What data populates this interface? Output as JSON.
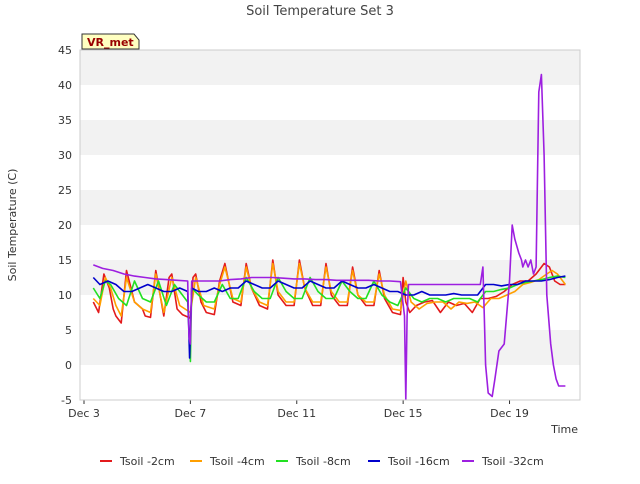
{
  "chart_data": {
    "type": "line",
    "title": "Soil Temperature Set 3",
    "xlabel": "Time",
    "ylabel": "Soil Temperature (C)",
    "badge": "VR_met",
    "ylim": [
      -5,
      45
    ],
    "yticks": [
      -5,
      0,
      5,
      10,
      15,
      20,
      25,
      30,
      35,
      40,
      45
    ],
    "xlim": [
      2.85,
      21.65
    ],
    "xticks": [
      {
        "x": 3,
        "label": "Dec 3"
      },
      {
        "x": 7,
        "label": "Dec 7"
      },
      {
        "x": 11,
        "label": "Dec 11"
      },
      {
        "x": 15,
        "label": "Dec 15"
      },
      {
        "x": 19,
        "label": "Dec 19"
      }
    ],
    "grid": "horizontal bands",
    "legend": "bottom",
    "series": [
      {
        "name": "Tsoil -2cm",
        "color": "#e31a1c",
        "x": [
          3.35,
          3.55,
          3.75,
          3.95,
          4.1,
          4.2,
          4.4,
          4.6,
          4.9,
          5.2,
          5.3,
          5.5,
          5.7,
          6.0,
          6.2,
          6.3,
          6.5,
          6.7,
          7.0,
          7.1,
          7.2,
          7.4,
          7.6,
          7.9,
          8.1,
          8.3,
          8.6,
          8.9,
          9.1,
          9.3,
          9.6,
          9.9,
          10.1,
          10.3,
          10.6,
          10.9,
          11.1,
          11.3,
          11.6,
          11.9,
          12.1,
          12.3,
          12.6,
          12.9,
          13.1,
          13.3,
          13.6,
          13.9,
          14.1,
          14.3,
          14.6,
          14.9,
          15.0,
          15.1,
          15.25,
          15.5,
          15.8,
          16.1,
          16.4,
          16.7,
          17.0,
          17.3,
          17.6,
          17.9,
          18.2,
          18.5,
          18.8,
          19.1,
          19.4,
          19.7,
          20.0,
          20.3,
          20.5,
          20.7,
          20.9,
          21.1
        ],
        "y": [
          9,
          7.5,
          13,
          11,
          8,
          7,
          6,
          13.5,
          9,
          8,
          7,
          6.8,
          13.5,
          7,
          12.5,
          13,
          8,
          7.2,
          6.7,
          12.5,
          13,
          9,
          7.5,
          7.2,
          12,
          14.5,
          9,
          8.5,
          14.5,
          11,
          8.5,
          8,
          15,
          10,
          8.5,
          8.5,
          15,
          11,
          8.5,
          8.5,
          14.5,
          10,
          8.5,
          8.5,
          14,
          10,
          8.5,
          8.5,
          13.5,
          9.5,
          7.5,
          7.2,
          12.5,
          9,
          7.5,
          8.5,
          9,
          9.2,
          7.5,
          9,
          8.5,
          8.8,
          7.5,
          9.5,
          9.5,
          9.8,
          10.5,
          11.5,
          12,
          12,
          13,
          14.5,
          14,
          12,
          11.5,
          11.5
        ]
      },
      {
        "name": "Tsoil -4cm",
        "color": "#ff9f00",
        "x": [
          3.35,
          3.6,
          3.8,
          4.0,
          4.2,
          4.4,
          4.6,
          4.9,
          5.2,
          5.5,
          5.7,
          6.0,
          6.3,
          6.6,
          7.0,
          7.2,
          7.5,
          7.9,
          8.1,
          8.3,
          8.6,
          8.9,
          9.1,
          9.3,
          9.6,
          9.9,
          10.1,
          10.3,
          10.6,
          10.9,
          11.1,
          11.3,
          11.6,
          11.9,
          12.1,
          12.3,
          12.6,
          12.9,
          13.1,
          13.3,
          13.6,
          13.9,
          14.1,
          14.3,
          14.6,
          14.9,
          15.1,
          15.3,
          15.6,
          15.9,
          16.2,
          16.5,
          16.8,
          17.1,
          17.4,
          17.7,
          18.0,
          18.3,
          18.6,
          18.9,
          19.2,
          19.5,
          19.8,
          20.1,
          20.4,
          20.6,
          20.8,
          21.1
        ],
        "y": [
          9.5,
          8.5,
          12.5,
          11,
          8.5,
          7,
          12.5,
          9,
          8,
          7.5,
          13,
          7.5,
          12.5,
          8.5,
          7.5,
          12.5,
          8.5,
          8,
          11.5,
          14,
          9.5,
          9,
          14,
          11,
          9,
          8.5,
          14.5,
          10.5,
          9,
          9,
          14.5,
          11,
          9,
          9,
          14,
          10.5,
          9,
          9,
          13.5,
          10,
          9,
          9,
          13,
          10,
          8,
          7.8,
          12,
          9,
          8,
          8.8,
          9,
          9,
          8,
          9,
          8.8,
          9,
          8.2,
          9.5,
          9.5,
          10,
          10.5,
          11.5,
          11.8,
          12.2,
          13,
          13.5,
          13,
          11.5
        ]
      },
      {
        "name": "Tsoil -8cm",
        "color": "#22e022",
        "x": [
          3.35,
          3.6,
          3.8,
          4.0,
          4.3,
          4.6,
          4.9,
          5.2,
          5.5,
          5.8,
          6.1,
          6.4,
          6.7,
          6.9,
          6.95,
          7.0,
          7.05,
          7.3,
          7.6,
          7.9,
          8.2,
          8.5,
          8.8,
          9.1,
          9.4,
          9.7,
          10.0,
          10.3,
          10.6,
          10.9,
          11.2,
          11.5,
          11.8,
          12.1,
          12.4,
          12.7,
          13.0,
          13.3,
          13.6,
          13.9,
          14.2,
          14.5,
          14.8,
          15.1,
          15.4,
          15.7,
          16.0,
          16.3,
          16.6,
          16.9,
          17.2,
          17.5,
          17.8,
          18.1,
          18.4,
          18.7,
          19.0,
          19.3,
          19.6,
          19.9,
          20.2,
          20.5,
          20.8,
          21.1
        ],
        "y": [
          11,
          9.5,
          12,
          11.5,
          9.5,
          8.5,
          12,
          9.5,
          9,
          12,
          8.5,
          11.5,
          10,
          9,
          5,
          0.5,
          11,
          10,
          9,
          9,
          11.5,
          9.5,
          9.5,
          12.5,
          10.5,
          9.5,
          9.5,
          12.5,
          10.5,
          9.5,
          9.5,
          12.5,
          10.5,
          9.5,
          9.5,
          12,
          10.5,
          9.5,
          9.5,
          12,
          10,
          9,
          8.5,
          11,
          9.5,
          9,
          9.5,
          9.5,
          9,
          9.5,
          9.5,
          9.5,
          9,
          10.5,
          10.5,
          10.8,
          11,
          11.5,
          11.8,
          12,
          12.2,
          12.5,
          12.7,
          12.5
        ]
      },
      {
        "name": "Tsoil -16cm",
        "color": "#0000cc",
        "x": [
          3.35,
          3.6,
          3.9,
          4.2,
          4.5,
          4.8,
          5.1,
          5.4,
          5.7,
          6.0,
          6.3,
          6.6,
          6.9,
          6.97,
          7.05,
          7.3,
          7.6,
          7.9,
          8.2,
          8.5,
          8.8,
          9.1,
          9.4,
          9.7,
          10.0,
          10.3,
          10.6,
          10.9,
          11.2,
          11.5,
          11.8,
          12.1,
          12.4,
          12.7,
          13.0,
          13.3,
          13.6,
          13.9,
          14.2,
          14.5,
          14.8,
          15.1,
          15.4,
          15.7,
          16.0,
          16.3,
          16.6,
          16.9,
          17.2,
          17.5,
          17.8,
          18.1,
          18.4,
          18.7,
          19.0,
          19.3,
          19.6,
          19.9,
          20.2,
          20.5,
          20.8,
          21.1
        ],
        "y": [
          12.5,
          11.5,
          12,
          11.5,
          10.5,
          10.5,
          11,
          11.5,
          11,
          10.5,
          10.5,
          11,
          10.5,
          1,
          11,
          10.5,
          10.5,
          11,
          10.5,
          11,
          11,
          12,
          11.5,
          11,
          11,
          12,
          11.5,
          11,
          11,
          12,
          11.5,
          11,
          11,
          12,
          11.5,
          11,
          11,
          11.5,
          11,
          10.5,
          10.5,
          10,
          10,
          10.5,
          10,
          10,
          10,
          10.2,
          10,
          10,
          10,
          11.5,
          11.5,
          11.3,
          11.5,
          11.5,
          12,
          12,
          12,
          12.2,
          12.5,
          12.7
        ]
      },
      {
        "name": "Tsoil -32cm",
        "color": "#9d1fe0",
        "x": [
          3.35,
          3.7,
          4.1,
          4.5,
          4.9,
          5.3,
          5.7,
          6.1,
          6.5,
          6.9,
          6.95,
          7.0,
          7.05,
          7.3,
          7.7,
          8.1,
          8.5,
          8.9,
          9.3,
          9.7,
          10.1,
          10.5,
          10.9,
          11.3,
          11.7,
          12.1,
          12.5,
          12.9,
          13.3,
          13.7,
          14.1,
          14.5,
          14.9,
          15.05,
          15.1,
          15.15,
          15.2,
          15.3,
          15.5,
          16.0,
          16.5,
          17.0,
          17.5,
          17.9,
          18.0,
          18.05,
          18.1,
          18.2,
          18.35,
          18.45,
          18.6,
          18.8,
          19.0,
          19.1,
          19.2,
          19.35,
          19.45,
          19.5,
          19.6,
          19.7,
          19.8,
          19.9,
          20.0,
          20.1,
          20.2,
          20.3,
          20.4,
          20.55,
          20.65,
          20.75,
          20.85,
          20.95,
          21.05,
          21.1
        ],
        "y": [
          14.3,
          13.8,
          13.5,
          13,
          12.7,
          12.5,
          12.3,
          12.2,
          12.1,
          12,
          4,
          3,
          12,
          12,
          12,
          12,
          12.2,
          12.3,
          12.5,
          12.5,
          12.5,
          12.4,
          12.3,
          12.3,
          12.2,
          12.2,
          12.1,
          12.1,
          12.1,
          12.1,
          12,
          12,
          11.9,
          7,
          -5,
          7,
          11.5,
          11.5,
          11.5,
          11.5,
          11.5,
          11.5,
          11.5,
          11.5,
          14,
          7,
          0,
          -4,
          -4.5,
          -2,
          2,
          3,
          12,
          20,
          18,
          16,
          15,
          14,
          15,
          14,
          15,
          13,
          14,
          39,
          41.5,
          30,
          10,
          3,
          0,
          -2,
          -3,
          -3,
          -3,
          -3
        ]
      }
    ]
  }
}
